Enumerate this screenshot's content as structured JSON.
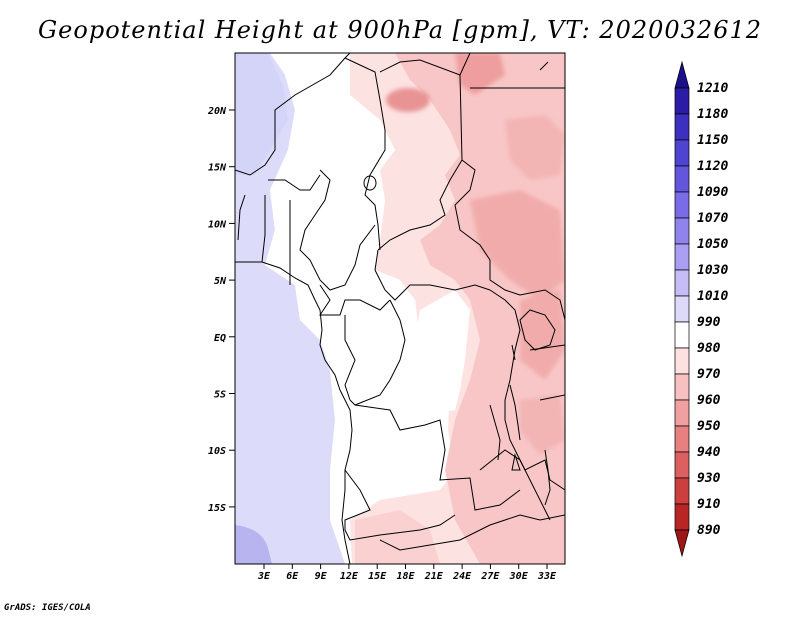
{
  "title": "Geopotential Height at 900hPa [gpm], VT: 2020032612",
  "credit": "GrADS: IGES/COLA",
  "map": {
    "region": "Central and West-Central Africa",
    "lat_labels": [
      "20N",
      "15N",
      "10N",
      "5N",
      "EQ",
      "5S",
      "10S",
      "15S"
    ],
    "lon_labels": [
      "3E",
      "6E",
      "9E",
      "12E",
      "15E",
      "18E",
      "21E",
      "24E",
      "27E",
      "30E",
      "33E"
    ],
    "lat_range": [
      -20,
      25
    ],
    "lon_range": [
      0,
      35
    ]
  },
  "colorbar": {
    "labels": [
      "1210",
      "1180",
      "1150",
      "1120",
      "1090",
      "1070",
      "1050",
      "1030",
      "1010",
      "990",
      "980",
      "970",
      "960",
      "950",
      "940",
      "930",
      "910",
      "890"
    ],
    "colors": [
      "#1c0f8c",
      "#2b1ba6",
      "#3d2fbf",
      "#4f44cf",
      "#6456dc",
      "#7a6be6",
      "#9183ee",
      "#ab9ff4",
      "#c6bdf7",
      "#dddaf9",
      "#ffffff",
      "#fde0e0",
      "#f8c0c0",
      "#f0a0a0",
      "#e88080",
      "#dd6060",
      "#cc3f3f",
      "#b82525",
      "#a01515"
    ]
  }
}
